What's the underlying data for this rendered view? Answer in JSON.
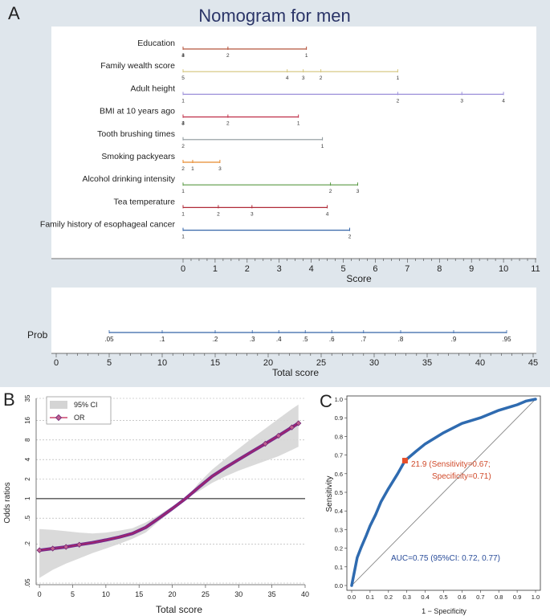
{
  "panel_labels": [
    "A",
    "B",
    "C"
  ],
  "chart_data": [
    {
      "type": "nomogram",
      "title": "Nomogram for men",
      "score_axis": {
        "label": "Score",
        "range": [
          0,
          11
        ],
        "ticks": [
          0,
          1,
          2,
          3,
          4,
          5,
          6,
          7,
          8,
          9,
          10,
          11
        ]
      },
      "variables": [
        {
          "name": "Education",
          "color": "#b5533c",
          "points": [
            {
              "label": "4",
              "score": 0
            },
            {
              "label": "3",
              "score": 0
            },
            {
              "label": "2",
              "score": 1.4
            },
            {
              "label": "1",
              "score": 3.85
            }
          ]
        },
        {
          "name": "Family wealth score",
          "color": "#d4c47a",
          "points": [
            {
              "label": "5",
              "score": 0
            },
            {
              "label": "4",
              "score": 3.25
            },
            {
              "label": "3",
              "score": 3.75
            },
            {
              "label": "2",
              "score": 4.3
            },
            {
              "label": "1",
              "score": 6.7
            }
          ]
        },
        {
          "name": "Adult height",
          "color": "#9b8fd9",
          "points": [
            {
              "label": "1",
              "score": 0
            },
            {
              "label": "2",
              "score": 6.7
            },
            {
              "label": "3",
              "score": 8.7
            },
            {
              "label": "4",
              "score": 10
            }
          ]
        },
        {
          "name": "BMI at 10 years ago",
          "color": "#c0304a",
          "points": [
            {
              "label": "4",
              "score": 0
            },
            {
              "label": "3",
              "score": 0
            },
            {
              "label": "2",
              "score": 1.4
            },
            {
              "label": "1",
              "score": 3.6
            }
          ]
        },
        {
          "name": "Tooth brushing times",
          "color": "#8c959a",
          "points": [
            {
              "label": "2",
              "score": 0
            },
            {
              "label": "1",
              "score": 4.35
            }
          ]
        },
        {
          "name": "Smoking packyears",
          "color": "#e88a2e",
          "points": [
            {
              "label": "2",
              "score": 0
            },
            {
              "label": "1",
              "score": 0.3
            },
            {
              "label": "3",
              "score": 1.15
            }
          ]
        },
        {
          "name": "Alcohol drinking intensity",
          "color": "#5a9a44",
          "points": [
            {
              "label": "1",
              "score": 0
            },
            {
              "label": "2",
              "score": 4.6
            },
            {
              "label": "3",
              "score": 5.45
            }
          ]
        },
        {
          "name": "Tea temperature",
          "color": "#b02a38",
          "points": [
            {
              "label": "1",
              "score": 0
            },
            {
              "label": "2",
              "score": 1.1
            },
            {
              "label": "3",
              "score": 2.15
            },
            {
              "label": "4",
              "score": 4.5
            }
          ]
        },
        {
          "name": "Family history of esophageal cancer",
          "color": "#3565a8",
          "points": [
            {
              "label": "1",
              "score": 0
            },
            {
              "label": "2",
              "score": 5.2
            }
          ]
        }
      ],
      "prob_axis": {
        "label": "Prob",
        "points": [
          {
            "label": ".05",
            "total": 5
          },
          {
            "label": ".1",
            "total": 10
          },
          {
            "label": ".2",
            "total": 15
          },
          {
            "label": ".3",
            "total": 18.5
          },
          {
            "label": ".4",
            "total": 21
          },
          {
            "label": ".5",
            "total": 23.5
          },
          {
            "label": ".6",
            "total": 26
          },
          {
            "label": ".7",
            "total": 29
          },
          {
            "label": ".8",
            "total": 32.5
          },
          {
            "label": ".9",
            "total": 37.5
          },
          {
            "label": ".95",
            "total": 42.5
          }
        ]
      },
      "total_axis": {
        "label": "Total score",
        "range": [
          0,
          45
        ],
        "ticks": [
          0,
          5,
          10,
          15,
          20,
          25,
          30,
          35,
          40,
          45
        ]
      }
    },
    {
      "type": "line",
      "xlabel": "Total score",
      "ylabel": "Odds ratios",
      "ylog": true,
      "xlim": [
        -0.5,
        40
      ],
      "xticks": [
        0,
        5,
        10,
        15,
        20,
        25,
        30,
        35,
        40
      ],
      "yticks": [
        {
          "value": 0.05,
          "label": ".05"
        },
        {
          "value": 0.2,
          "label": ".2"
        },
        {
          "value": 0.5,
          "label": ".5"
        },
        {
          "value": 1,
          "label": "1"
        },
        {
          "value": 2,
          "label": "2"
        },
        {
          "value": 4,
          "label": "4"
        },
        {
          "value": 8,
          "label": "8"
        },
        {
          "value": 16,
          "label": "16"
        },
        {
          "value": 35,
          "label": "35"
        }
      ],
      "reference_line": 1,
      "legend": [
        "95% CI",
        "OR"
      ],
      "series": [
        {
          "name": "OR",
          "x": [
            0,
            2,
            4,
            6,
            8,
            10,
            12,
            14,
            16,
            18,
            20,
            22,
            24,
            26,
            28,
            30,
            32,
            34,
            36,
            38,
            39
          ],
          "y": [
            0.16,
            0.17,
            0.18,
            0.195,
            0.21,
            0.23,
            0.255,
            0.29,
            0.36,
            0.5,
            0.7,
            1.0,
            1.5,
            2.2,
            3.0,
            4.0,
            5.3,
            7.0,
            9.3,
            12.5,
            14.5
          ]
        },
        {
          "name": "CI lower",
          "x": [
            0,
            2,
            4,
            6,
            8,
            10,
            12,
            14,
            16,
            18,
            20,
            22,
            24,
            26,
            28,
            30,
            32,
            34,
            36,
            38,
            39
          ],
          "y": [
            0.06,
            0.08,
            0.1,
            0.12,
            0.145,
            0.17,
            0.2,
            0.24,
            0.3,
            0.45,
            0.65,
            1.0,
            1.3,
            1.75,
            2.2,
            2.7,
            3.2,
            3.8,
            4.5,
            5.6,
            6.3
          ]
        },
        {
          "name": "CI upper",
          "x": [
            0,
            2,
            4,
            6,
            8,
            10,
            12,
            14,
            16,
            18,
            20,
            22,
            24,
            26,
            28,
            30,
            32,
            34,
            36,
            38,
            39
          ],
          "y": [
            0.34,
            0.33,
            0.315,
            0.3,
            0.29,
            0.3,
            0.32,
            0.35,
            0.43,
            0.56,
            0.76,
            1.0,
            1.75,
            2.8,
            4.1,
            5.9,
            8.5,
            12,
            17,
            24,
            28
          ]
        }
      ]
    },
    {
      "type": "line",
      "xlabel": "1 − Specificity",
      "ylabel": "Sensitivity",
      "xlim": [
        0,
        1
      ],
      "ylim": [
        0,
        1
      ],
      "xticks": [
        "0.0",
        "0.1",
        "0.2",
        "0.3",
        "0.4",
        "0.5",
        "0.6",
        "0.7",
        "0.8",
        "0.9",
        "1.0"
      ],
      "yticks": [
        "0.0",
        "0.1",
        "0.2",
        "0.3",
        "0.4",
        "0.5",
        "0.6",
        "0.7",
        "0.8",
        "0.9",
        "1.0"
      ],
      "series": [
        {
          "name": "ROC",
          "x": [
            0,
            0.01,
            0.02,
            0.03,
            0.05,
            0.08,
            0.1,
            0.13,
            0.16,
            0.2,
            0.25,
            0.29,
            0.35,
            0.4,
            0.5,
            0.6,
            0.7,
            0.8,
            0.9,
            0.95,
            1.0
          ],
          "y": [
            0,
            0.05,
            0.1,
            0.15,
            0.2,
            0.27,
            0.32,
            0.38,
            0.45,
            0.52,
            0.6,
            0.67,
            0.72,
            0.76,
            0.82,
            0.87,
            0.9,
            0.94,
            0.97,
            0.99,
            1.0
          ]
        },
        {
          "name": "Reference",
          "x": [
            0,
            1
          ],
          "y": [
            0,
            1
          ]
        }
      ],
      "cutoff": {
        "x": 0.29,
        "y": 0.67,
        "label_line1": "21.9 (Sensitivity=0.67;",
        "label_line2": "Specificity=0.71)"
      },
      "annotation": "AUC=0.75 (95%CI: 0.72, 0.77)"
    }
  ]
}
